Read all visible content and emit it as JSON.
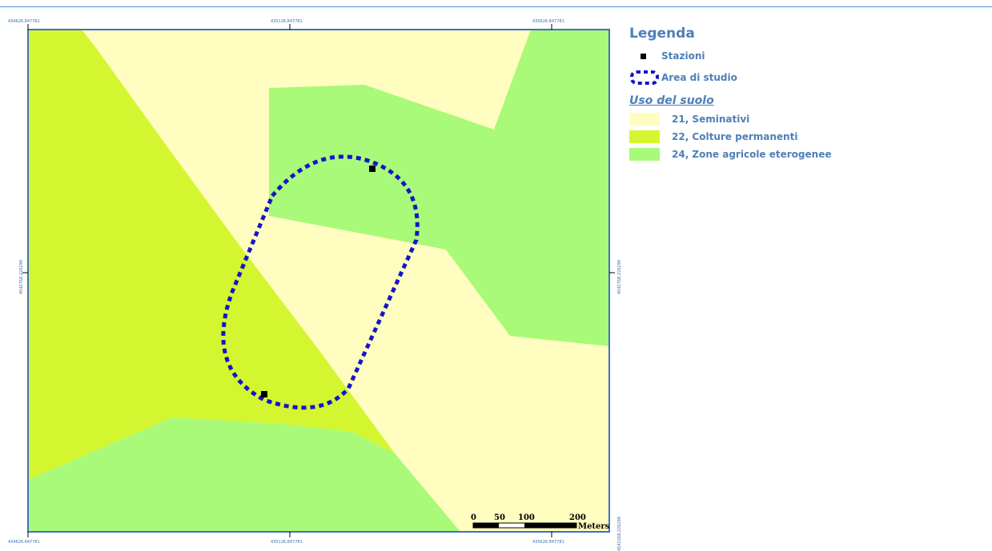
{
  "coords": {
    "x_left": "434626.847781",
    "x_center": "435126.847781",
    "x_right": "435626.847781",
    "y_mid": "4542768.226299",
    "y_bottom": "4542268.226299"
  },
  "legend": {
    "title": "Legenda",
    "stations_label": "Stazioni",
    "study_area_label": "Area di studio",
    "land_use_title": "Uso del suolo",
    "classes": [
      {
        "label": "21, Seminativi",
        "color": "#fffdc0"
      },
      {
        "label": "22, Colture permanenti",
        "color": "#d4f630"
      },
      {
        "label": "24, Zone agricole eterogenee",
        "color": "#a8fa78"
      }
    ]
  },
  "scale_bar": {
    "labels": [
      "0",
      "50",
      "100",
      "200"
    ],
    "unit": "Meters"
  },
  "colors": {
    "frame": "#3f6fc4",
    "study_area_outline": "#1515c8",
    "station": "#000000"
  }
}
